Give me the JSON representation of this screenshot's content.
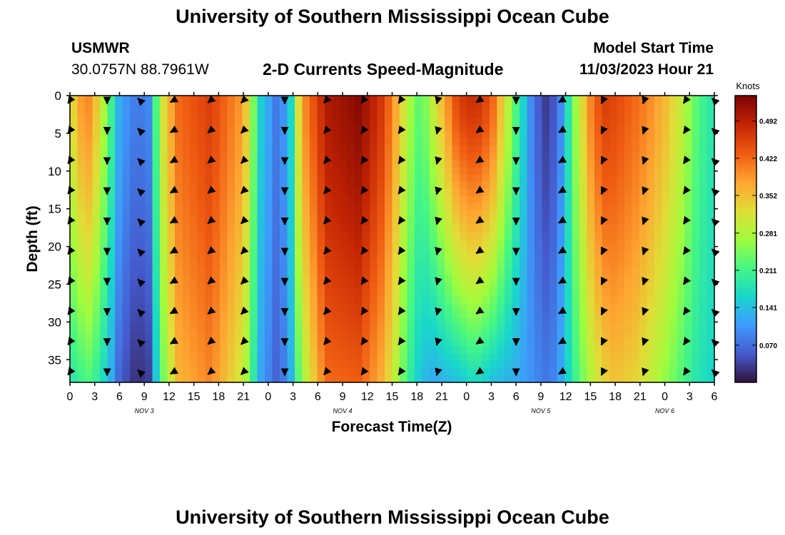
{
  "page": {
    "title": "University of Southern Mississippi Ocean Cube",
    "footer_title": "University of Southern Mississippi Ocean Cube",
    "station": "USMWR",
    "coords": "30.0757N  88.7961W",
    "subtitle": "2-D Currents Speed-Magnitude",
    "start_label": "Model Start Time",
    "start_value": "11/03/2023 Hour 21"
  },
  "chart_data": {
    "type": "heatmap",
    "title": "2-D Currents Speed-Magnitude",
    "xlabel": "Forecast Time(Z)",
    "ylabel": "Depth (ft)",
    "x_range_hours": [
      0,
      78
    ],
    "y_range_ft": [
      0,
      38
    ],
    "x_ticks": [
      "0",
      "3",
      "6",
      "9",
      "12",
      "15",
      "18",
      "21",
      "0",
      "3",
      "6",
      "9",
      "12",
      "15",
      "18",
      "21",
      "0",
      "3",
      "6",
      "9",
      "12",
      "15",
      "18",
      "21",
      "0",
      "3",
      "6"
    ],
    "day_labels": [
      {
        "hour": 9,
        "text": "NOV 3"
      },
      {
        "hour": 33,
        "text": "NOV 4"
      },
      {
        "hour": 57,
        "text": "NOV 5"
      },
      {
        "hour": 72,
        "text": "NOV 6"
      }
    ],
    "y_ticks": [
      0,
      5,
      10,
      15,
      20,
      25,
      30,
      35
    ],
    "colorbar": {
      "label": "Knots",
      "min": 0.0,
      "max": 0.54,
      "tick_values": [
        0.492,
        0.422,
        0.352,
        0.281,
        0.211,
        0.141,
        0.07
      ],
      "tick_labels": [
        "0.492",
        "0.422",
        "0.352",
        "0.281",
        "0.211",
        "0.141",
        "0.070"
      ]
    },
    "speed_profile_hours": [
      0,
      1,
      2.5,
      4.5,
      6,
      8,
      9.5,
      11,
      13,
      17,
      21,
      23,
      25,
      26.5,
      28,
      31,
      35,
      38,
      41,
      42.5,
      44,
      47,
      49,
      51,
      54,
      56,
      57.5,
      58.5,
      59.5,
      61,
      63,
      64.5,
      66,
      68.5,
      70,
      72,
      74,
      76,
      78
    ],
    "speed_surface_knots": [
      0.3,
      0.38,
      0.4,
      0.25,
      0.12,
      0.08,
      0.09,
      0.3,
      0.42,
      0.46,
      0.38,
      0.16,
      0.08,
      0.12,
      0.38,
      0.5,
      0.53,
      0.46,
      0.28,
      0.22,
      0.3,
      0.46,
      0.48,
      0.44,
      0.22,
      0.08,
      0.03,
      0.05,
      0.1,
      0.25,
      0.4,
      0.46,
      0.45,
      0.42,
      0.4,
      0.36,
      0.3,
      0.22,
      0.18
    ],
    "speed_bottom_knots": [
      0.18,
      0.2,
      0.22,
      0.15,
      0.06,
      0.02,
      0.03,
      0.22,
      0.36,
      0.4,
      0.3,
      0.12,
      0.06,
      0.1,
      0.26,
      0.42,
      0.43,
      0.36,
      0.2,
      0.14,
      0.12,
      0.14,
      0.17,
      0.14,
      0.12,
      0.1,
      0.08,
      0.09,
      0.12,
      0.2,
      0.28,
      0.33,
      0.35,
      0.33,
      0.3,
      0.26,
      0.22,
      0.18,
      0.16
    ],
    "arrow_hours": [
      0,
      4.5,
      8.5,
      12.5,
      17,
      21,
      26,
      31,
      35.5,
      40,
      44.5,
      49.5,
      54,
      59.5,
      64.5,
      69.5,
      74.5,
      78
    ],
    "arrow_depths_ft": [
      0,
      4,
      8,
      12,
      16,
      20,
      24,
      28,
      32,
      36
    ],
    "arrow_directions_deg": [
      125,
      90,
      225,
      150,
      140,
      135,
      90,
      130,
      125,
      125,
      105,
      145,
      90,
      150,
      115,
      110,
      125,
      225
    ]
  }
}
